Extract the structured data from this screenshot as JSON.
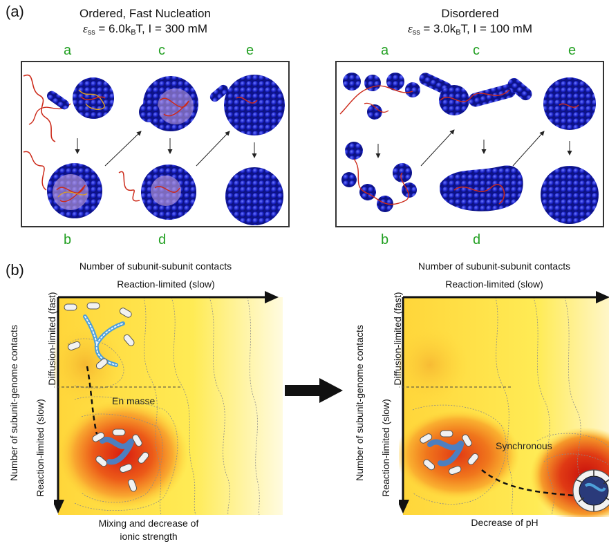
{
  "panel_a": {
    "label": "(a)",
    "left": {
      "title_line1": "Ordered, Fast Nucleation",
      "eps_symbol": "ε",
      "eps_sub": "ss",
      "eps_rest": " = 6.0k",
      "kb_sub": "B",
      "params_rest": "T, I = 300 mM",
      "top_labels": [
        "a",
        "c",
        "e"
      ],
      "bottom_labels": [
        "b",
        "d"
      ]
    },
    "right": {
      "title_line1": "Disordered",
      "eps_symbol": "ε",
      "eps_sub": "ss",
      "eps_rest": " = 3.0k",
      "kb_sub": "B",
      "params_rest": "T, I = 100 mM",
      "top_labels": [
        "a",
        "c",
        "e"
      ],
      "bottom_labels": [
        "b",
        "d"
      ]
    }
  },
  "panel_b": {
    "label": "(b)",
    "left": {
      "top_title": "Number of subunit-subunit contacts",
      "x_arrow_label": "Reaction-limited (slow)",
      "y_title": "Number of subunit-genome contacts",
      "y_fast": "Diffusion-limited (fast)",
      "y_slow": "Reaction-limited (slow)",
      "pathway_label": "En masse",
      "bottom_caption_line1": "Mixing and decrease of",
      "bottom_caption_line2": "ionic strength"
    },
    "right": {
      "top_title": "Number of subunit-subunit contacts",
      "x_arrow_label": "Reaction-limited (slow)",
      "y_title": "Number of subunit-genome contacts",
      "y_fast": "Diffusion-limited (fast)",
      "y_slow": "Reaction-limited (slow)",
      "pathway_label": "Synchronous",
      "bottom_caption": "Decrease of pH"
    }
  },
  "colors": {
    "sphere_blue": "#1a22c8",
    "genome_red": "#cc2a1a",
    "label_green": "#22a022",
    "landscape_yellow": "#ffe84a",
    "landscape_red": "#d81c10"
  }
}
